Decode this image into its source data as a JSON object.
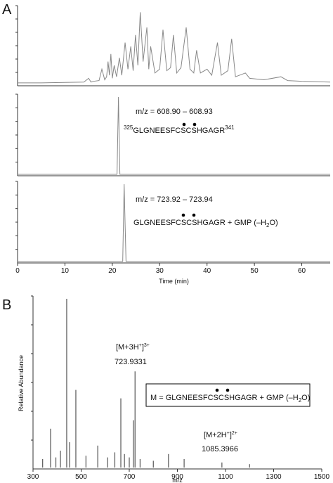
{
  "panel_labels": [
    "A",
    "B"
  ],
  "chart_data": [
    {
      "type": "line",
      "color": "#888888",
      "x": [
        0,
        5,
        14,
        15,
        15.5,
        16,
        17.2,
        17.8,
        18.4,
        18.8,
        19.1,
        19.4,
        19.7,
        20.0,
        20.4,
        20.9,
        21.5,
        22.0,
        22.7,
        23.3,
        23.9,
        24.4,
        24.9,
        25.4,
        25.9,
        26.5,
        27.3,
        27.7,
        28.1,
        29,
        30.0,
        30.7,
        31.5,
        32.3,
        32.9,
        33.6,
        34.5,
        35.6,
        36.4,
        37.2,
        37.8,
        38.6,
        40,
        41,
        42.2,
        43,
        44.4,
        45.2,
        46,
        48.1,
        49,
        52,
        55.6,
        57,
        60,
        66
      ],
      "values": [
        2,
        2,
        3,
        8,
        3,
        4,
        5,
        20,
        6,
        10,
        30,
        12,
        40,
        8,
        25,
        10,
        35,
        12,
        55,
        20,
        50,
        18,
        65,
        25,
        95,
        30,
        75,
        20,
        50,
        15,
        20,
        72,
        18,
        22,
        65,
        15,
        22,
        75,
        20,
        15,
        45,
        15,
        20,
        12,
        55,
        12,
        18,
        60,
        10,
        15,
        8,
        6,
        10,
        5,
        4,
        3
      ],
      "xlim": [
        0,
        66
      ],
      "ylim": [
        0,
        100
      ]
    },
    {
      "type": "line",
      "color": "#888888",
      "x": [
        0,
        21,
        21.3,
        21.6,
        22,
        66
      ],
      "values": [
        0,
        0,
        100,
        0,
        0,
        0
      ],
      "xlim": [
        0,
        66
      ],
      "ylim": [
        0,
        100
      ],
      "annotation": {
        "range": "m/z = 608.90 – 608.93",
        "peptide_start": "325",
        "peptide": "GLGNEESFCSCSHGAGR",
        "peptide_end": "341"
      }
    },
    {
      "type": "line",
      "color": "#888888",
      "x": [
        0,
        22.2,
        22.5,
        22.9,
        66
      ],
      "values": [
        0,
        0,
        100,
        0,
        0
      ],
      "xlim": [
        0,
        66
      ],
      "ylim": [
        0,
        100
      ],
      "xticks": [
        0,
        10,
        20,
        30,
        40,
        50,
        60
      ],
      "xlabel": "Time (min)",
      "annotation": {
        "range": "m/z = 723.92 – 723.94",
        "peptide": [
          "GLGNEESFCSCSHGAGR + GMP (–H",
          "2",
          "O)"
        ]
      }
    },
    {
      "type": "stick",
      "color": "#555555",
      "x": [
        340,
        373,
        395,
        414,
        440,
        452,
        478,
        520,
        569,
        610,
        640,
        665,
        680,
        700,
        717,
        724,
        745,
        800,
        863,
        928,
        1085,
        1200
      ],
      "values": [
        5,
        23,
        6,
        10,
        100,
        15,
        46,
        7,
        13,
        6,
        9,
        41,
        8,
        6,
        28,
        57,
        5,
        4,
        8,
        5,
        3,
        2
      ],
      "xlim": [
        300,
        1500
      ],
      "ylim": [
        0,
        100
      ],
      "xticks": [
        300,
        500,
        700,
        900,
        1100,
        1300,
        1500
      ],
      "xlabel": "m/z",
      "ylabel": "Relative Abundance",
      "annotation": {
        "ion1": [
          "[M+3H",
          "+",
          "]",
          "3+"
        ],
        "ion1_mz": "723.9331",
        "ion2": [
          "[M+2H",
          "+",
          "]",
          "2+"
        ],
        "ion2_mz": "1085.3966",
        "formula": [
          "M = GLGNEESFCSCSHGAGR + GMP (–H",
          "2",
          "O)"
        ]
      }
    }
  ]
}
